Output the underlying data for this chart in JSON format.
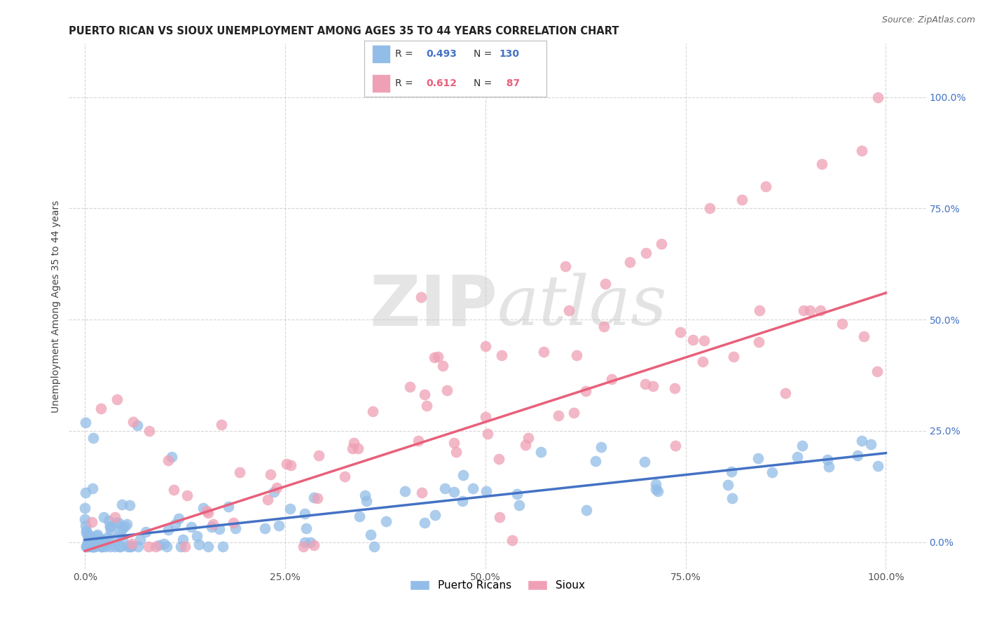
{
  "title": "PUERTO RICAN VS SIOUX UNEMPLOYMENT AMONG AGES 35 TO 44 YEARS CORRELATION CHART",
  "source": "Source: ZipAtlas.com",
  "ylabel": "Unemployment Among Ages 35 to 44 years",
  "x_tick_labels": [
    "0.0%",
    "25.0%",
    "50.0%",
    "75.0%",
    "100.0%"
  ],
  "x_tick_vals": [
    0.0,
    0.25,
    0.5,
    0.75,
    1.0
  ],
  "y_tick_labels": [
    "0.0%",
    "25.0%",
    "50.0%",
    "75.0%",
    "100.0%"
  ],
  "y_tick_vals": [
    0.0,
    0.25,
    0.5,
    0.75,
    1.0
  ],
  "xlim": [
    -0.02,
    1.05
  ],
  "ylim": [
    -0.06,
    1.12
  ],
  "blue_color": "#92BDE8",
  "pink_color": "#F0A0B5",
  "blue_line_color": "#4472C4",
  "pink_line_color": "#E8607A",
  "legend_label_blue": "Puerto Ricans",
  "legend_label_pink": "Sioux",
  "watermark_zip": "ZIP",
  "watermark_atlas": "atlas",
  "blue_slope": 0.195,
  "blue_intercept": 0.005,
  "pink_slope": 0.58,
  "pink_intercept": -0.02,
  "background_color": "#FFFFFF",
  "grid_color": "#CCCCCC",
  "title_fontsize": 10.5,
  "source_fontsize": 9
}
